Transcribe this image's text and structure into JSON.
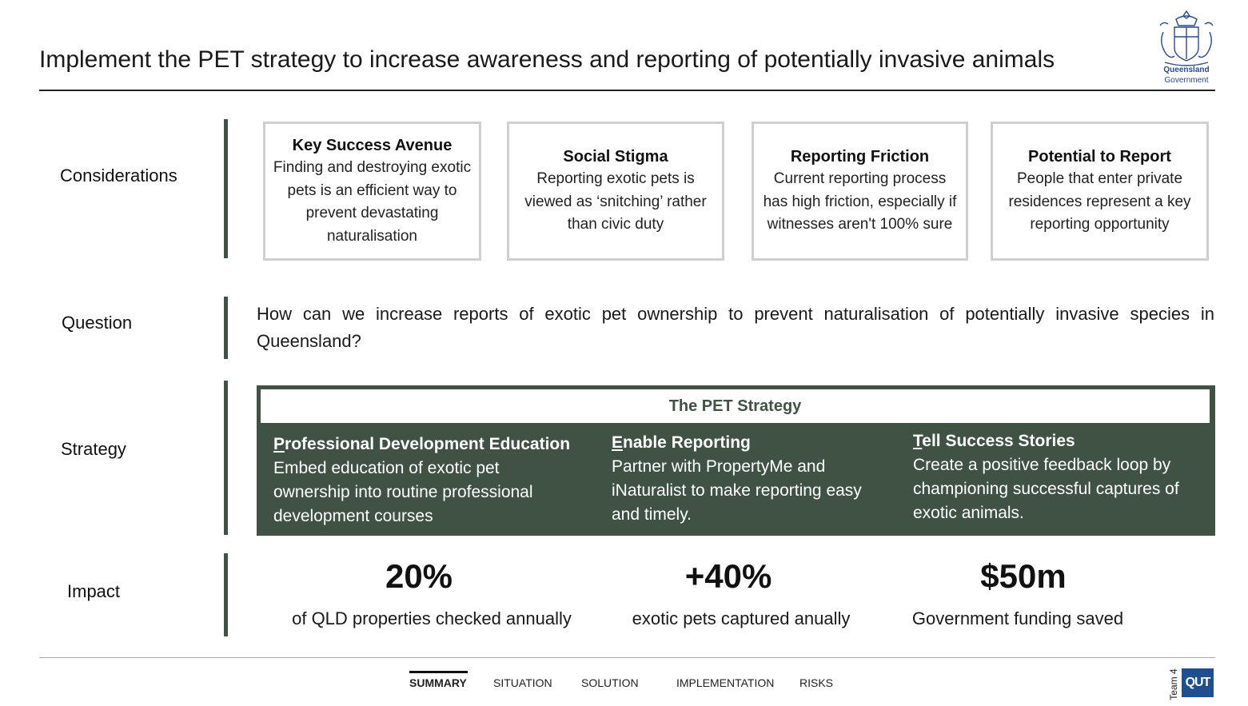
{
  "header": {
    "title": "Implement the PET strategy to increase awareness and reporting of potentially invasive animals",
    "logo": {
      "icon": "queensland-crest-icon",
      "line1": "Queensland",
      "line2": "Government"
    }
  },
  "rows": {
    "considerations": "Considerations",
    "question": "Question",
    "strategy": "Strategy",
    "impact": "Impact"
  },
  "considerations": [
    {
      "title": "Key Success Avenue",
      "body": "Finding and destroying exotic pets is an efficient way to prevent devastating naturalisation"
    },
    {
      "title": "Social Stigma",
      "body": "Reporting exotic pets is viewed as ‘snitching’ rather than civic duty"
    },
    {
      "title": "Reporting Friction",
      "body": "Current reporting process has high friction, especially if witnesses aren't 100% sure"
    },
    {
      "title": "Potential to Report",
      "body": "People that enter private residences represent a key reporting opportunity"
    }
  ],
  "question": "How can we increase reports of exotic pet ownership to prevent naturalisation of potentially invasive species in Queensland?",
  "strategy": {
    "header": "The PET Strategy",
    "pillars": [
      {
        "initial": "P",
        "title_rest": "rofessional Development Education",
        "body": "Embed education of exotic pet ownership into routine professional development courses"
      },
      {
        "initial": "E",
        "title_rest": "nable Reporting",
        "body": "Partner with PropertyMe and iNaturalist to make reporting easy and timely."
      },
      {
        "initial": "T",
        "title_rest": "ell Success Stories",
        "body": "Create a positive feedback loop by championing successful captures of exotic animals."
      }
    ]
  },
  "impact": [
    {
      "value": "20%",
      "label": "of QLD properties checked annually"
    },
    {
      "value": "+40%",
      "label": "exotic pets captured anually"
    },
    {
      "value": "$50m",
      "label": "Government funding saved"
    }
  ],
  "footer": {
    "nav": [
      "SUMMARY",
      "SITUATION",
      "SOLUTION",
      "IMPLEMENTATION",
      "RISKS"
    ],
    "active": "SUMMARY",
    "team": "Team 4",
    "brand": "QUT"
  },
  "colors": {
    "accent": "#3f5244",
    "card_border": "#cfcfcf",
    "brand_blue": "#1f4f8f"
  }
}
